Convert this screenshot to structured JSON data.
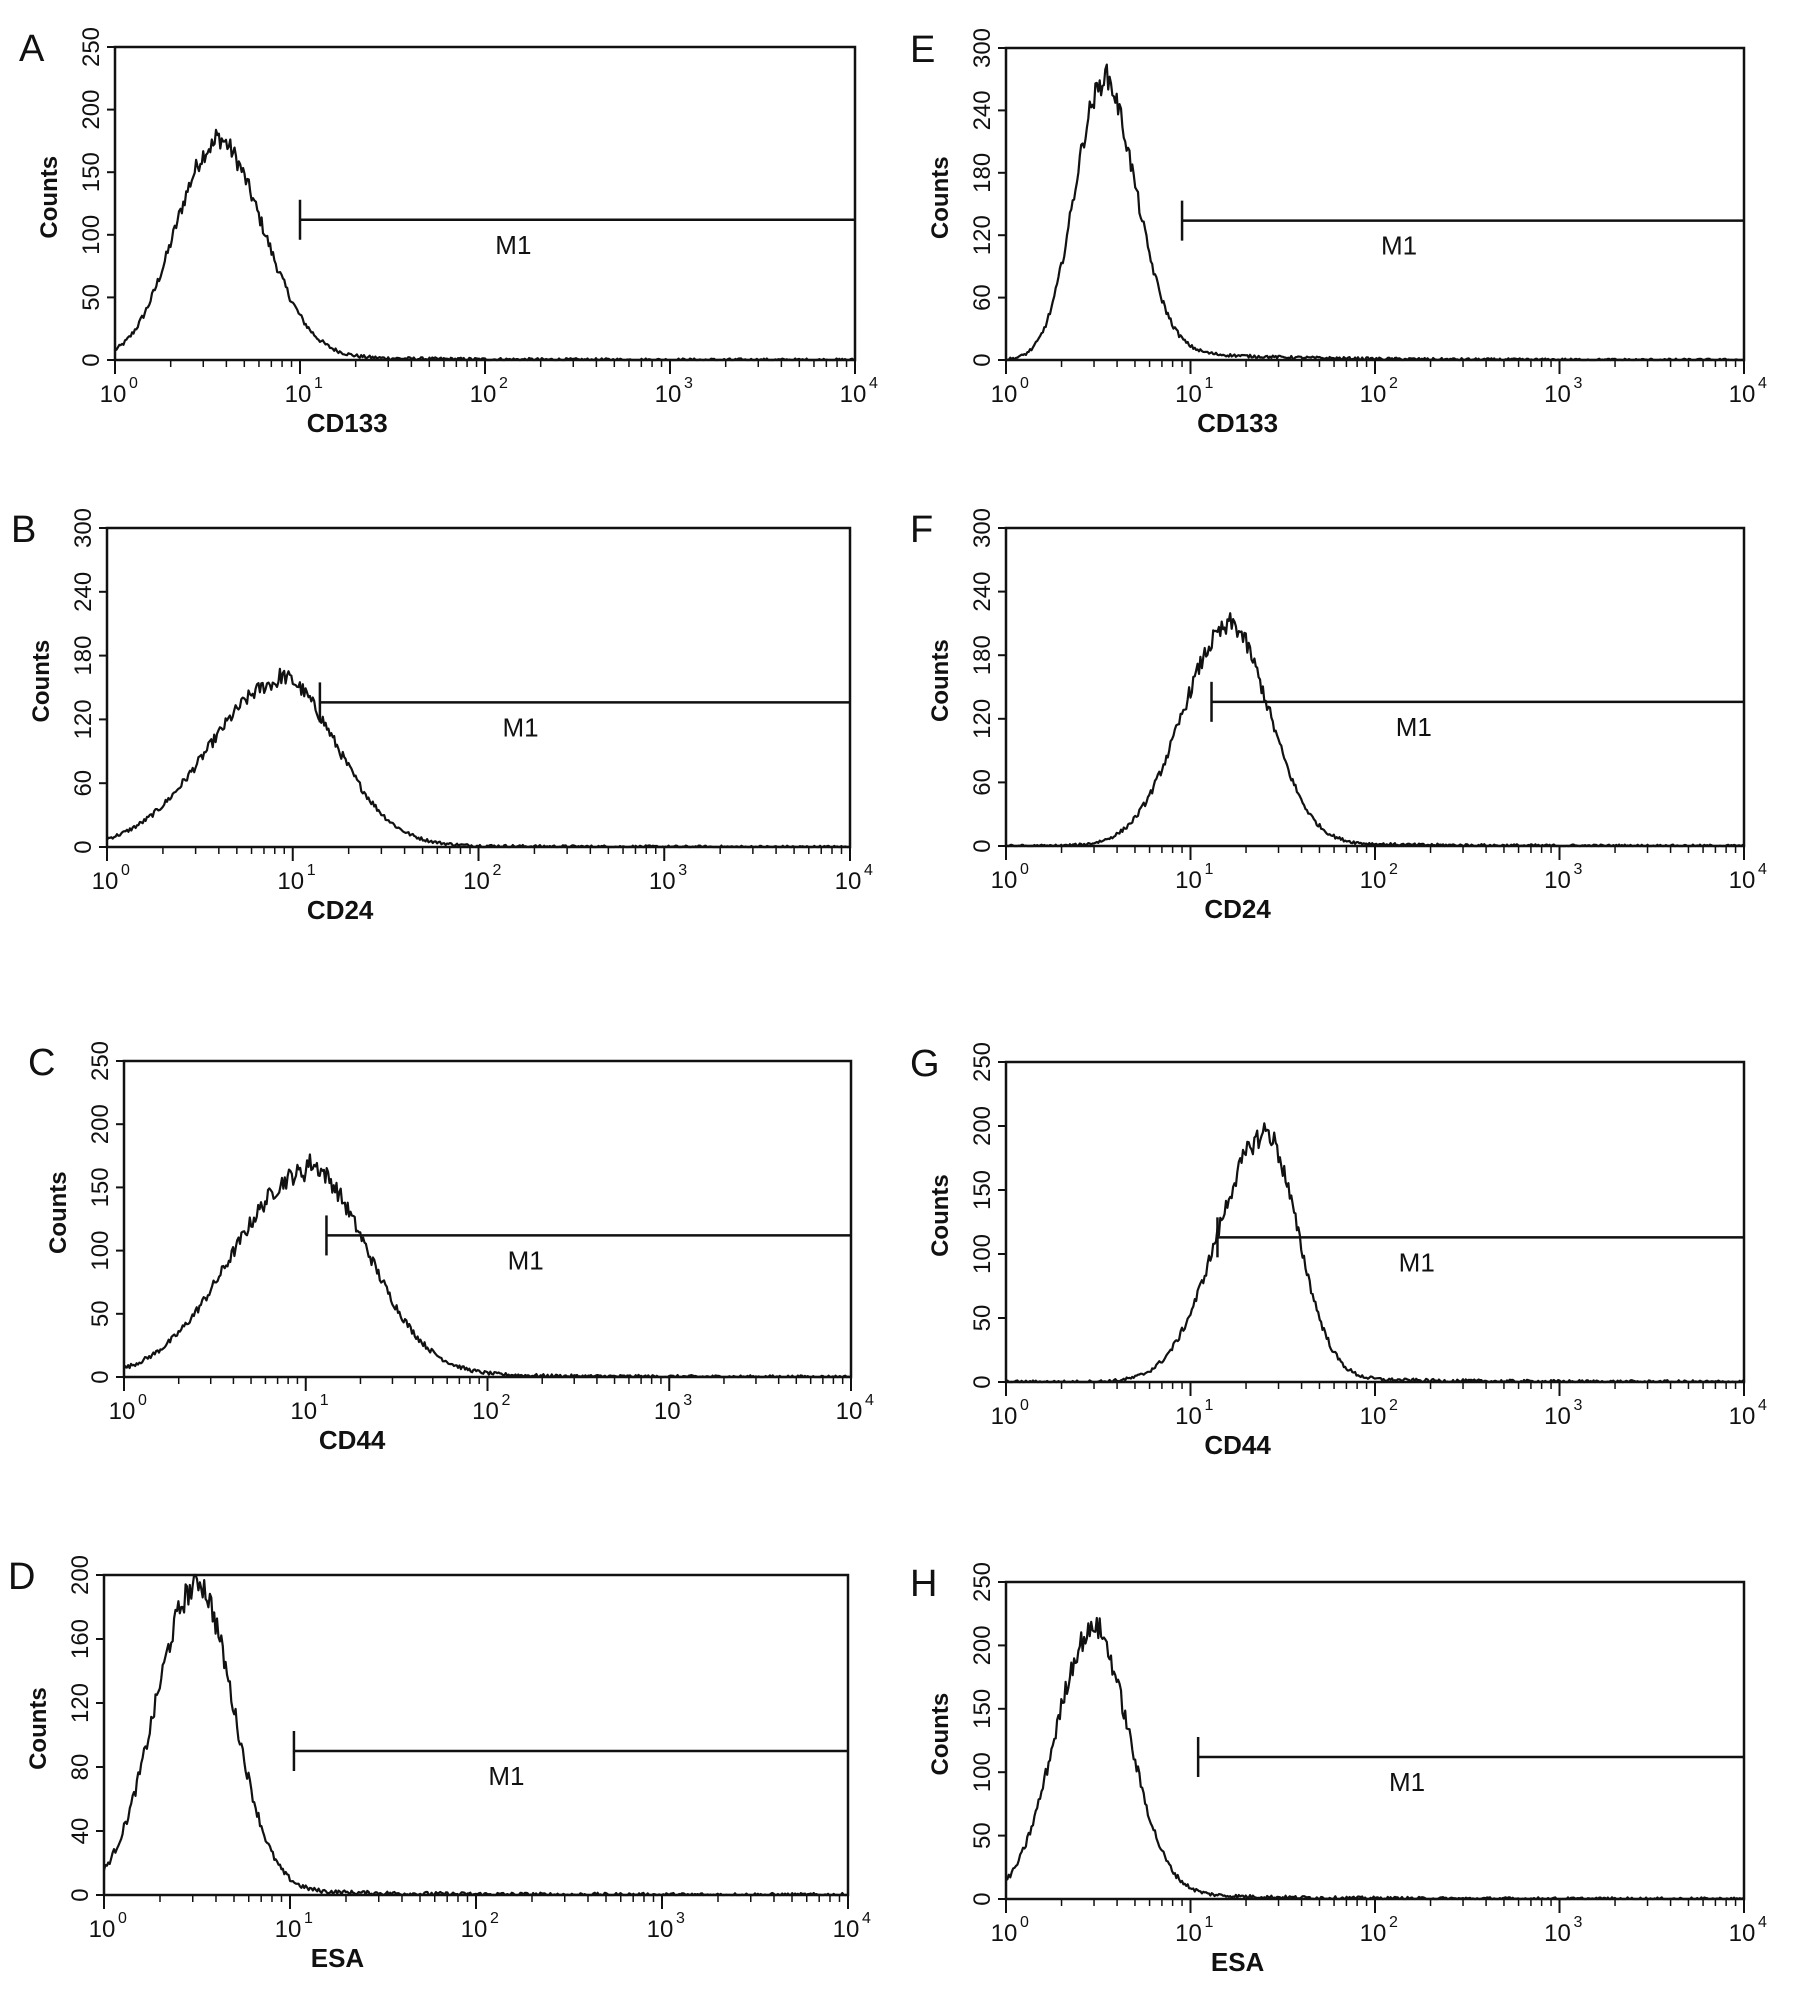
{
  "figure": {
    "background": "#ffffff",
    "line_color": "#111111"
  },
  "chart_data": [
    {
      "type": "area",
      "panel": "A",
      "xlabel": "CD133",
      "ylabel": "Counts",
      "xscale": "log",
      "xlim": [
        1,
        10000
      ],
      "x_ticks": [
        {
          "base": "10",
          "exp": "0"
        },
        {
          "base": "10",
          "exp": "1"
        },
        {
          "base": "10",
          "exp": "2"
        },
        {
          "base": "10",
          "exp": "3"
        },
        {
          "base": "10",
          "exp": "4"
        }
      ],
      "ylim": [
        0,
        250
      ],
      "y_ticks": [
        "0",
        "50",
        "100",
        "150",
        "200",
        "250"
      ],
      "marker": {
        "label": "M1",
        "x_start": 10,
        "x_end": 10000,
        "y": 112
      },
      "histogram": {
        "peak_x": 3.5,
        "peak_count": 172,
        "sigma": 0.22,
        "sigma_right": 0.25,
        "tail": 6
      },
      "grid": false,
      "legend": "none"
    },
    {
      "type": "area",
      "panel": "B",
      "xlabel": "CD24",
      "ylabel": "Counts",
      "xscale": "log",
      "xlim": [
        1,
        10000
      ],
      "x_ticks": [
        {
          "base": "10",
          "exp": "0"
        },
        {
          "base": "10",
          "exp": "1"
        },
        {
          "base": "10",
          "exp": "2"
        },
        {
          "base": "10",
          "exp": "3"
        },
        {
          "base": "10",
          "exp": "4"
        }
      ],
      "ylim": [
        0,
        300
      ],
      "y_ticks": [
        "0",
        "60",
        "120",
        "180",
        "240",
        "300"
      ],
      "marker": {
        "label": "M1",
        "x_start": 14,
        "x_end": 10000,
        "y": 136
      },
      "histogram": {
        "peak_x": 8.5,
        "peak_count": 155,
        "sigma": 0.38,
        "sigma_right": 0.3,
        "tail": 6
      },
      "grid": false,
      "legend": "none"
    },
    {
      "type": "area",
      "panel": "C",
      "xlabel": "CD44",
      "ylabel": "Counts",
      "xscale": "log",
      "xlim": [
        1,
        10000
      ],
      "x_ticks": [
        {
          "base": "10",
          "exp": "0"
        },
        {
          "base": "10",
          "exp": "1"
        },
        {
          "base": "10",
          "exp": "2"
        },
        {
          "base": "10",
          "exp": "3"
        },
        {
          "base": "10",
          "exp": "4"
        }
      ],
      "ylim": [
        0,
        250
      ],
      "y_ticks": [
        "0",
        "50",
        "100",
        "150",
        "200",
        "250"
      ],
      "marker": {
        "label": "M1",
        "x_start": 13,
        "x_end": 10000,
        "y": 112
      },
      "histogram": {
        "peak_x": 10,
        "peak_count": 162,
        "sigma": 0.4,
        "sigma_right": 0.33,
        "tail": 8
      },
      "grid": false,
      "legend": "none"
    },
    {
      "type": "area",
      "panel": "D",
      "xlabel": "ESA",
      "ylabel": "Counts",
      "xscale": "log",
      "xlim": [
        1,
        10000
      ],
      "x_ticks": [
        {
          "base": "10",
          "exp": "0"
        },
        {
          "base": "10",
          "exp": "1"
        },
        {
          "base": "10",
          "exp": "2"
        },
        {
          "base": "10",
          "exp": "3"
        },
        {
          "base": "10",
          "exp": "4"
        }
      ],
      "ylim": [
        0,
        200
      ],
      "y_ticks": [
        "0",
        "40",
        "80",
        "120",
        "160",
        "200"
      ],
      "marker": {
        "label": "M1",
        "x_start": 10.5,
        "x_end": 10000,
        "y": 90
      },
      "histogram": {
        "peak_x": 3.1,
        "peak_count": 192,
        "sigma": 0.22,
        "sigma_right": 0.2,
        "tail": 6
      },
      "grid": false,
      "legend": "none"
    },
    {
      "type": "area",
      "panel": "E",
      "xlabel": "CD133",
      "ylabel": "Counts",
      "xscale": "log",
      "xlim": [
        1,
        10000
      ],
      "x_ticks": [
        {
          "base": "10",
          "exp": "0"
        },
        {
          "base": "10",
          "exp": "1"
        },
        {
          "base": "10",
          "exp": "2"
        },
        {
          "base": "10",
          "exp": "3"
        },
        {
          "base": "10",
          "exp": "4"
        }
      ],
      "ylim": [
        0,
        300
      ],
      "y_ticks": [
        "0",
        "60",
        "120",
        "180",
        "240",
        "300"
      ],
      "marker": {
        "label": "M1",
        "x_start": 9,
        "x_end": 10000,
        "y": 134
      },
      "histogram": {
        "peak_x": 3.3,
        "peak_count": 262,
        "sigma": 0.15,
        "sigma_right": 0.18,
        "tail": 14
      },
      "grid": false,
      "legend": "none"
    },
    {
      "type": "area",
      "panel": "F",
      "xlabel": "CD24",
      "ylabel": "Counts",
      "xscale": "log",
      "xlim": [
        1,
        10000
      ],
      "x_ticks": [
        {
          "base": "10",
          "exp": "0"
        },
        {
          "base": "10",
          "exp": "1"
        },
        {
          "base": "10",
          "exp": "2"
        },
        {
          "base": "10",
          "exp": "3"
        },
        {
          "base": "10",
          "exp": "4"
        }
      ],
      "ylim": [
        0,
        300
      ],
      "y_ticks": [
        "0",
        "60",
        "120",
        "180",
        "240",
        "300"
      ],
      "marker": {
        "label": "M1",
        "x_start": 13,
        "x_end": 10000,
        "y": 136
      },
      "histogram": {
        "peak_x": 16,
        "peak_count": 205,
        "sigma": 0.25,
        "sigma_right": 0.22,
        "tail": 6
      },
      "grid": false,
      "legend": "none"
    },
    {
      "type": "area",
      "panel": "G",
      "xlabel": "CD44",
      "ylabel": "Counts",
      "xscale": "log",
      "xlim": [
        1,
        10000
      ],
      "x_ticks": [
        {
          "base": "10",
          "exp": "0"
        },
        {
          "base": "10",
          "exp": "1"
        },
        {
          "base": "10",
          "exp": "2"
        },
        {
          "base": "10",
          "exp": "3"
        },
        {
          "base": "10",
          "exp": "4"
        }
      ],
      "ylim": [
        0,
        250
      ],
      "y_ticks": [
        "0",
        "50",
        "100",
        "150",
        "200",
        "250"
      ],
      "marker": {
        "label": "M1",
        "x_start": 14,
        "x_end": 10000,
        "y": 113
      },
      "histogram": {
        "peak_x": 25,
        "peak_count": 192,
        "sigma": 0.25,
        "sigma_right": 0.18,
        "tail": 5
      },
      "grid": false,
      "legend": "none"
    },
    {
      "type": "area",
      "panel": "H",
      "xlabel": "ESA",
      "ylabel": "Counts",
      "xscale": "log",
      "xlim": [
        1,
        10000
      ],
      "x_ticks": [
        {
          "base": "10",
          "exp": "0"
        },
        {
          "base": "10",
          "exp": "1"
        },
        {
          "base": "10",
          "exp": "2"
        },
        {
          "base": "10",
          "exp": "3"
        },
        {
          "base": "10",
          "exp": "4"
        }
      ],
      "ylim": [
        0,
        250
      ],
      "y_ticks": [
        "0",
        "50",
        "100",
        "150",
        "200",
        "250"
      ],
      "marker": {
        "label": "M1",
        "x_start": 11,
        "x_end": 10000,
        "y": 112
      },
      "histogram": {
        "peak_x": 2.9,
        "peak_count": 210,
        "sigma": 0.2,
        "sigma_right": 0.2,
        "tail": 8
      },
      "grid": false,
      "legend": "none"
    }
  ]
}
